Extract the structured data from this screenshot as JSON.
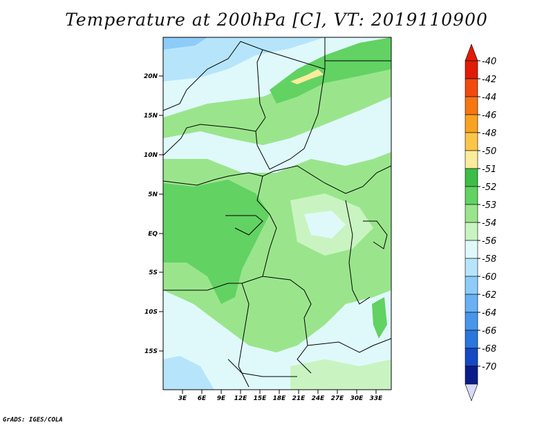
{
  "title": "Temperature at 200hPa [C], VT: 2019110900",
  "credit": "GrADS: IGES/COLA",
  "map": {
    "lat_ticks": [
      "20N",
      "15N",
      "10N",
      "5N",
      "EQ",
      "5S",
      "10S",
      "15S"
    ],
    "lon_ticks": [
      "3E",
      "6E",
      "9E",
      "12E",
      "15E",
      "18E",
      "21E",
      "24E",
      "27E",
      "30E",
      "33E"
    ]
  },
  "colorbar": {
    "labels": [
      "-40",
      "-42",
      "-44",
      "-46",
      "-48",
      "-50",
      "-51",
      "-52",
      "-53",
      "-54",
      "-56",
      "-58",
      "-60",
      "-62",
      "-64",
      "-66",
      "-68",
      "-70"
    ],
    "colors": [
      "#e11b07",
      "#f04a0e",
      "#f6760f",
      "#f9a21f",
      "#fbc648",
      "#fbec9c",
      "#3cbe46",
      "#62d263",
      "#9ae58c",
      "#c9f4c1",
      "#dff9fb",
      "#b6e5fb",
      "#8dccf8",
      "#68b1f3",
      "#4896ec",
      "#2a76dc",
      "#1548c2",
      "#0b1c8a"
    ],
    "bottom_tip_color": "#d8d8f8"
  }
}
